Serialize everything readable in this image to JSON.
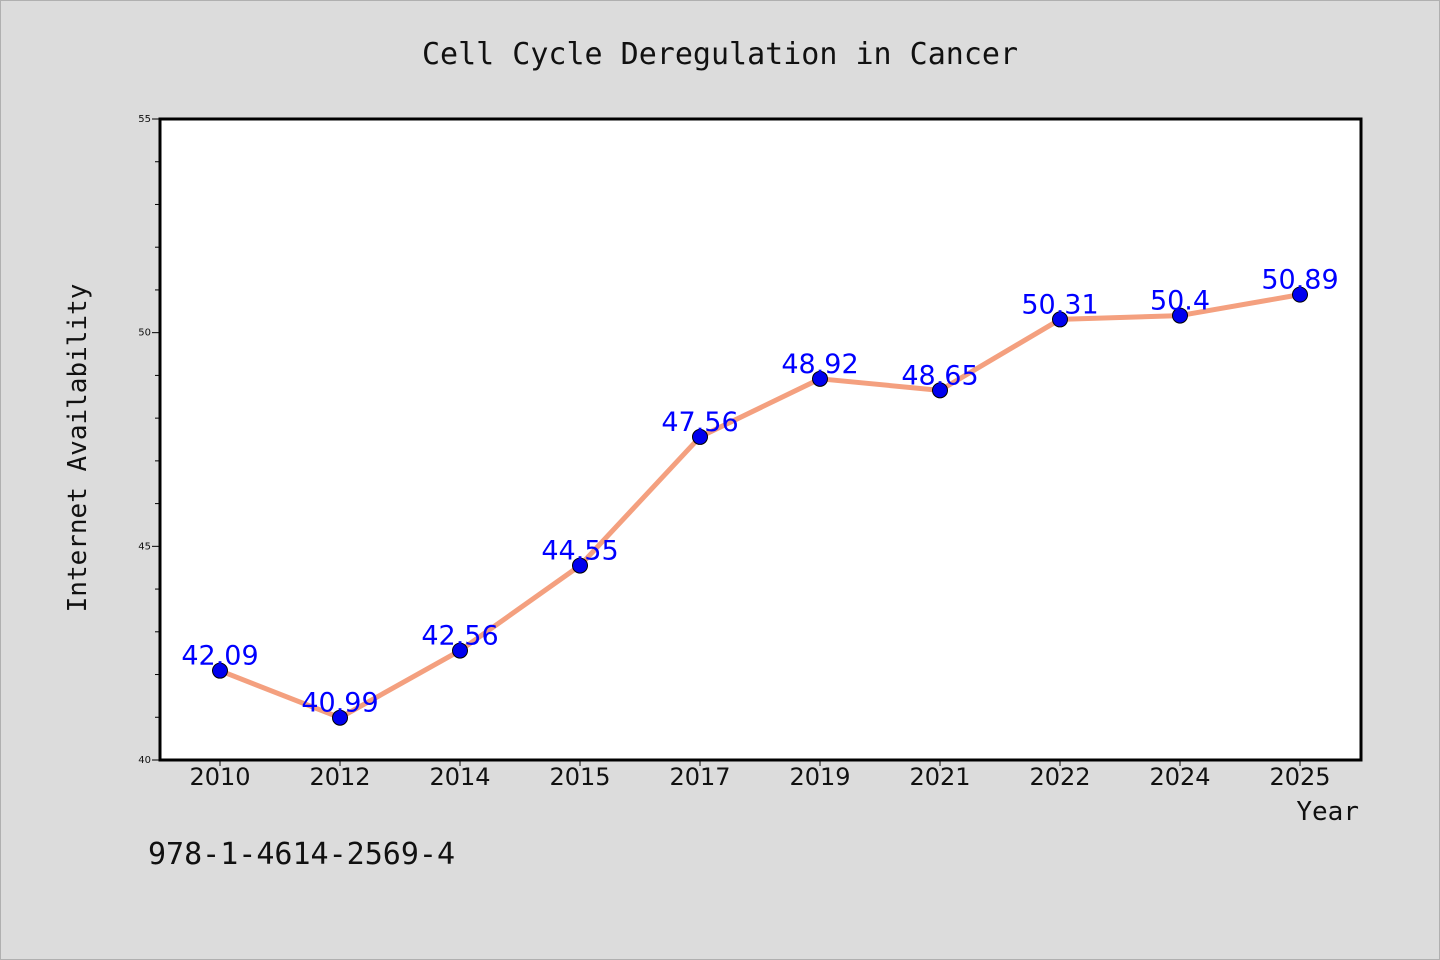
{
  "chart_data": {
    "type": "line",
    "title": "Cell Cycle Deregulation in Cancer",
    "xlabel": "Year",
    "ylabel": "Internet Availability",
    "categories": [
      "2010",
      "2012",
      "2014",
      "2015",
      "2017",
      "2019",
      "2021",
      "2022",
      "2024",
      "2025"
    ],
    "series": [
      {
        "values": [
          42.09,
          40.99,
          42.56,
          44.55,
          47.56,
          48.92,
          48.65,
          50.31,
          50.4,
          50.89
        ],
        "data_labels": [
          "42.09",
          "40.99",
          "42.56",
          "44.55",
          "47.56",
          "48.92",
          "48.65",
          "50.31",
          "50.4",
          "50.89"
        ]
      }
    ],
    "ylim": [
      40,
      55
    ],
    "yticks": [
      "40",
      "45",
      "50",
      "55"
    ],
    "grid": false,
    "line_color": "#f4a07f",
    "marker_color": "#0000ee",
    "label_color": "#0000ff"
  },
  "footer": {
    "isbn": "978-1-4614-2569-4"
  },
  "colors": {
    "background": "#dcdcdc",
    "plot_background": "#ffffff"
  }
}
